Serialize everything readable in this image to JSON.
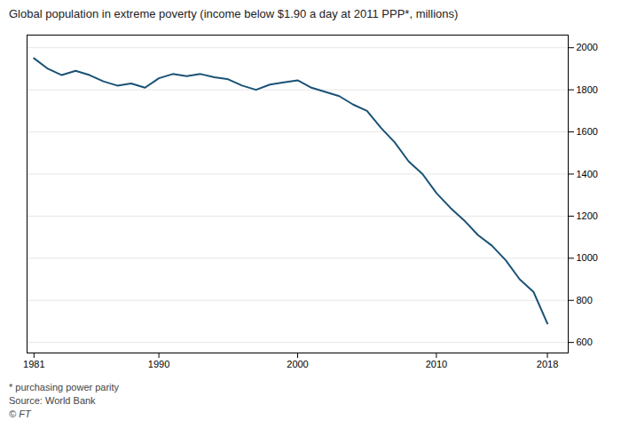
{
  "chart_data": {
    "type": "line",
    "title": "Global population in extreme poverty (income below $1.90 a day at 2011 PPP*, millions)",
    "annotations": [
      "* purchasing power parity",
      "Source: World Bank",
      "© FT"
    ],
    "x": [
      1981,
      1982,
      1983,
      1984,
      1985,
      1986,
      1987,
      1988,
      1989,
      1990,
      1991,
      1992,
      1993,
      1994,
      1995,
      1996,
      1997,
      1998,
      1999,
      2000,
      2001,
      2002,
      2003,
      2004,
      2005,
      2006,
      2007,
      2008,
      2009,
      2010,
      2011,
      2012,
      2013,
      2014,
      2015,
      2016,
      2017,
      2018
    ],
    "values": [
      1950,
      1900,
      1870,
      1890,
      1870,
      1840,
      1820,
      1830,
      1810,
      1855,
      1875,
      1865,
      1875,
      1860,
      1850,
      1820,
      1800,
      1825,
      1835,
      1845,
      1810,
      1790,
      1770,
      1730,
      1700,
      1620,
      1550,
      1460,
      1400,
      1310,
      1240,
      1180,
      1110,
      1060,
      990,
      900,
      840,
      690
    ],
    "color": "#1a5276",
    "xlim": [
      1980.5,
      2019.5
    ],
    "xticks": [
      1981,
      1990,
      2000,
      2010,
      2018
    ],
    "ylim": [
      550,
      2060
    ],
    "yticks": [
      600,
      800,
      1000,
      1200,
      1400,
      1600,
      1800,
      2000
    ],
    "grid": true
  }
}
